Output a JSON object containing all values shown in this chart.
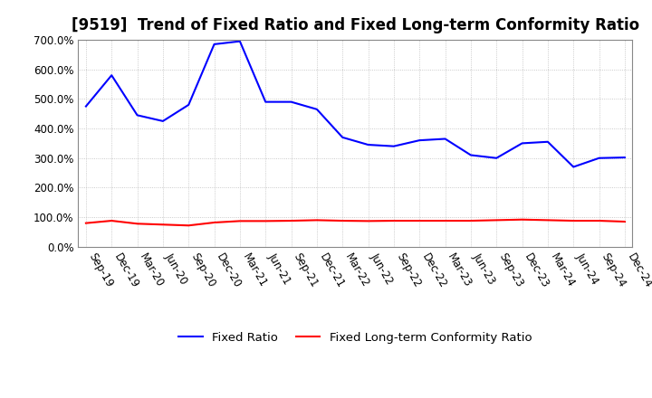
{
  "title": "[9519]  Trend of Fixed Ratio and Fixed Long-term Conformity Ratio",
  "x_labels": [
    "Sep-19",
    "Dec-19",
    "Mar-20",
    "Jun-20",
    "Sep-20",
    "Dec-20",
    "Mar-21",
    "Jun-21",
    "Sep-21",
    "Dec-21",
    "Mar-22",
    "Jun-22",
    "Sep-22",
    "Dec-22",
    "Mar-23",
    "Jun-23",
    "Sep-23",
    "Dec-23",
    "Mar-24",
    "Jun-24",
    "Sep-24",
    "Dec-24"
  ],
  "fixed_ratio": [
    475,
    580,
    445,
    425,
    480,
    685,
    695,
    490,
    490,
    465,
    370,
    345,
    340,
    360,
    365,
    310,
    300,
    350,
    355,
    270,
    300,
    302
  ],
  "fixed_ltcr": [
    80,
    88,
    78,
    75,
    72,
    82,
    87,
    87,
    88,
    90,
    88,
    87,
    88,
    88,
    88,
    88,
    90,
    92,
    90,
    88,
    88,
    85
  ],
  "ylim": [
    0,
    700
  ],
  "yticks": [
    0,
    100,
    200,
    300,
    400,
    500,
    600,
    700
  ],
  "fixed_ratio_color": "#0000FF",
  "fixed_ltcr_color": "#FF0000",
  "background_color": "#FFFFFF",
  "plot_bg_color": "#FFFFFF",
  "grid_color": "#BBBBBB",
  "legend_fixed_ratio": "Fixed Ratio",
  "legend_fixed_ltcr": "Fixed Long-term Conformity Ratio",
  "title_fontsize": 12,
  "tick_fontsize": 8.5,
  "legend_fontsize": 9.5
}
